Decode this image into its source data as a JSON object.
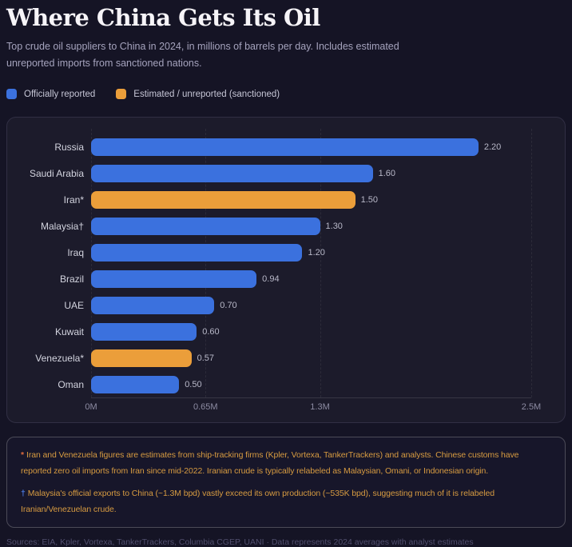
{
  "header": {
    "title": "Where China Gets Its Oil",
    "subtitle": "Top crude oil suppliers to China in 2024, in millions of barrels per day. Includes estimated unreported imports from sanctioned nations."
  },
  "legend": [
    {
      "label": "Officially reported",
      "color": "#3b71de"
    },
    {
      "label": "Estimated / unreported (sanctioned)",
      "color": "#eb9e3a"
    }
  ],
  "chart_data": {
    "type": "bar",
    "orientation": "horizontal",
    "title": "Where China Gets Its Oil",
    "xlabel": "millions of barrels per day",
    "ylabel": "",
    "xlim": [
      0,
      2.5
    ],
    "grid": "vertical-dashed",
    "legend_position": "top",
    "categories": [
      "Russia",
      "Saudi Arabia",
      "Iran*",
      "Malaysia†",
      "Iraq",
      "Brazil",
      "UAE",
      "Kuwait",
      "Venezuela*",
      "Oman"
    ],
    "values": [
      2.2,
      1.6,
      1.5,
      1.3,
      1.2,
      0.94,
      0.7,
      0.6,
      0.57,
      0.5
    ],
    "value_labels": [
      "2.20",
      "1.60",
      "1.50",
      "1.30",
      "1.20",
      "0.94",
      "0.70",
      "0.60",
      "0.57",
      "0.50"
    ],
    "series_by_bar": [
      "official",
      "official",
      "estimated",
      "official",
      "official",
      "official",
      "official",
      "official",
      "estimated",
      "official"
    ],
    "colors": {
      "official": "#3b71de",
      "estimated": "#eb9e3a"
    },
    "x_ticks": [
      {
        "value": 0,
        "label": "0M"
      },
      {
        "value": 0.65,
        "label": "0.65M"
      },
      {
        "value": 1.3,
        "label": "1.3M"
      },
      {
        "value": 2.5,
        "label": "2.5M"
      }
    ]
  },
  "footnotes": [
    {
      "marker": "*",
      "marker_color": "#de6a3c",
      "text": "Iran and Venezuela figures are estimates from ship-tracking firms (Kpler, Vortexa, TankerTrackers) and analysts. Chinese customs have reported zero oil imports from Iran since mid-2022. Iranian crude is typically relabeled as Malaysian, Omani, or Indonesian origin."
    },
    {
      "marker": "†",
      "marker_color": "#4b7be4",
      "text": "Malaysia's official exports to China (~1.3M bpd) vastly exceed its own production (~535K bpd), suggesting much of it is relabeled Iranian/Venezuelan crude."
    }
  ],
  "footer": {
    "sources": "Sources: EIA, Kpler, Vortexa, TankerTrackers, Columbia CGEP, UANI · Data represents 2024 averages with analyst estimates"
  }
}
